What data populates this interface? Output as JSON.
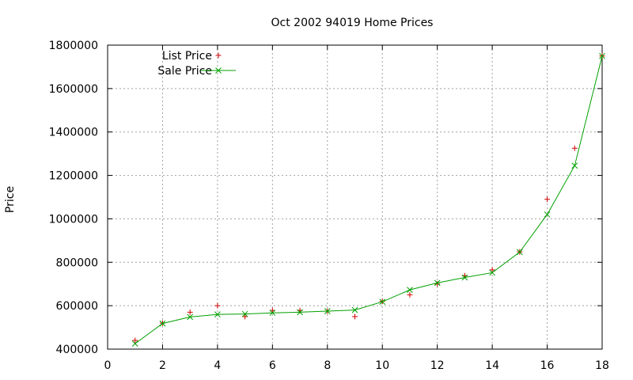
{
  "chart_data": {
    "type": "line",
    "title": "Oct 2002 94019 Home Prices",
    "xlabel": "",
    "ylabel": "Price",
    "xlim": [
      0,
      18
    ],
    "ylim": [
      400000,
      1800000
    ],
    "xticks": [
      "0",
      "2",
      "4",
      "6",
      "8",
      "10",
      "12",
      "14",
      "16",
      "18"
    ],
    "yticks": [
      "400000",
      "600000",
      "800000",
      "1000000",
      "1200000",
      "1400000",
      "1600000",
      "1800000"
    ],
    "grid": true,
    "legend_position": "top-left",
    "series": [
      {
        "name": "List Price",
        "style": "points",
        "marker": "plus",
        "color": "#d00000",
        "x": [
          1,
          2,
          3,
          4,
          5,
          6,
          7,
          8,
          9,
          10,
          11,
          12,
          13,
          14,
          15,
          16,
          17,
          18
        ],
        "y": [
          440000,
          520000,
          570000,
          600000,
          550000,
          578000,
          578000,
          575000,
          550000,
          620000,
          650000,
          700000,
          738000,
          765000,
          848000,
          1090000,
          1325000,
          1750000
        ]
      },
      {
        "name": "Sale Price",
        "style": "linespoints",
        "marker": "cross",
        "color": "#00a000",
        "x": [
          1,
          2,
          3,
          4,
          5,
          6,
          7,
          8,
          9,
          10,
          11,
          12,
          13,
          14,
          15,
          16,
          17,
          18
        ],
        "y": [
          425000,
          518000,
          548000,
          560000,
          562000,
          567000,
          570000,
          575000,
          580000,
          618000,
          673000,
          705000,
          730000,
          752000,
          847000,
          1020000,
          1245000,
          1750000
        ]
      }
    ]
  }
}
